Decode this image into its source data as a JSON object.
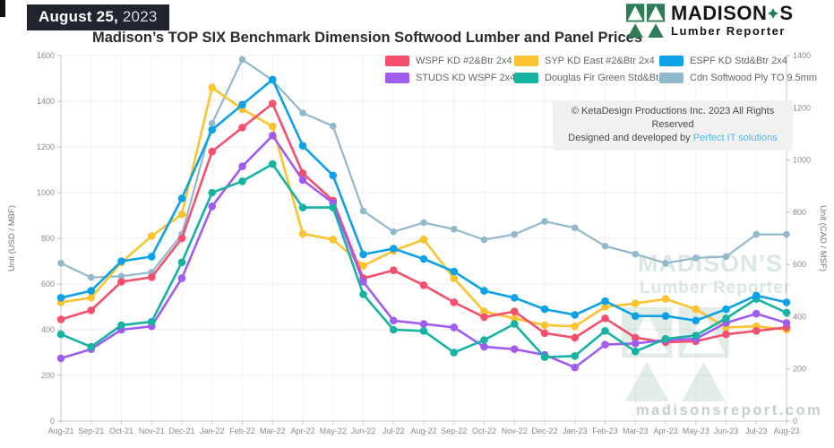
{
  "page": {
    "badge_date": "August 25,",
    "badge_year": "2023",
    "title": "Madison’s TOP SIX Benchmark Dimension Softwood Lumber and Panel Prices"
  },
  "logo": {
    "brand_prefix": "MADISON",
    "brand_suffix": "S",
    "tagline": "Lumber Reporter",
    "green": "#1e7b52"
  },
  "copyright": {
    "line1": "© KetaDesign Productions Inc. 2023 All Rights Reserved",
    "line2_prefix": "Designed and developed by ",
    "line2_link": "Perfect IT solutions",
    "link_color": "#4fb8e8"
  },
  "watermark": {
    "brand_text": "MADISON’S",
    "tagline": "Lumber Reporter",
    "url_text": "madisonsreport.com",
    "green": "#2e7d57"
  },
  "chart_data": {
    "type": "line",
    "title": "Madison’s TOP SIX Benchmark Dimension Softwood Lumber and Panel Prices",
    "categories": [
      "Aug-21",
      "Sep-21",
      "Oct-21",
      "Nov-21",
      "Dec-21",
      "Jan-22",
      "Feb-22",
      "Mar-22",
      "Apr-22",
      "May-22",
      "Jun-22",
      "Jul-22",
      "Aug-22",
      "Sep-22",
      "Oct-22",
      "Nov-22",
      "Dec-22",
      "Jan-23",
      "Feb-23",
      "Mar-23",
      "Apr-23",
      "May-23",
      "Jun-23",
      "Jul-23",
      "Aug-23"
    ],
    "series": [
      {
        "name": "WSPF KD #2&Btr 2x4",
        "color": "#f4506e",
        "axis": "left",
        "values": [
          445,
          485,
          610,
          630,
          800,
          1180,
          1285,
          1390,
          1085,
          965,
          625,
          660,
          595,
          520,
          455,
          480,
          385,
          365,
          450,
          365,
          345,
          350,
          380,
          395,
          410
        ]
      },
      {
        "name": "SYP KD East #2&Btr 2x4",
        "color": "#fbc32e",
        "axis": "left",
        "values": [
          520,
          540,
          695,
          810,
          905,
          1460,
          1365,
          1290,
          820,
          795,
          680,
          745,
          795,
          625,
          480,
          450,
          420,
          415,
          500,
          515,
          535,
          490,
          410,
          415,
          400
        ]
      },
      {
        "name": "ESPF KD Std&Btr 2x4",
        "color": "#0da2e7",
        "axis": "left",
        "values": [
          540,
          570,
          700,
          720,
          975,
          1275,
          1385,
          1495,
          1205,
          1075,
          730,
          755,
          710,
          655,
          570,
          540,
          490,
          465,
          525,
          460,
          460,
          440,
          490,
          550,
          520
        ]
      },
      {
        "name": "STUDS KD WSPF 2x4 PET",
        "color": "#a05cf0",
        "axis": "left",
        "values": [
          275,
          315,
          400,
          415,
          625,
          940,
          1115,
          1250,
          1055,
          955,
          610,
          440,
          425,
          410,
          325,
          315,
          290,
          235,
          335,
          340,
          355,
          360,
          430,
          470,
          430
        ]
      },
      {
        "name": "Douglas Fir Green Std&Btr 2x4",
        "color": "#16b3a2",
        "axis": "left",
        "values": [
          380,
          325,
          420,
          435,
          695,
          1000,
          1050,
          1125,
          935,
          935,
          555,
          400,
          395,
          300,
          355,
          425,
          280,
          285,
          395,
          305,
          360,
          375,
          450,
          535,
          475
        ]
      },
      {
        "name": "Cdn Softwood Ply TO 9.5mm",
        "color": "#92b8cc",
        "axis": "right",
        "values": [
          605,
          550,
          555,
          570,
          715,
          1140,
          1385,
          1305,
          1180,
          1130,
          805,
          725,
          760,
          735,
          695,
          715,
          765,
          740,
          670,
          640,
          605,
          625,
          630,
          715,
          715
        ]
      }
    ],
    "y_left": {
      "title": "Unit (USD / MBF)",
      "min": 0,
      "max": 1600,
      "step": 200
    },
    "y_right": {
      "title": "Unit (CAD / MSF)",
      "min": 0,
      "max": 1400,
      "step": 200
    },
    "grid": true,
    "legend_position": "top-right"
  }
}
